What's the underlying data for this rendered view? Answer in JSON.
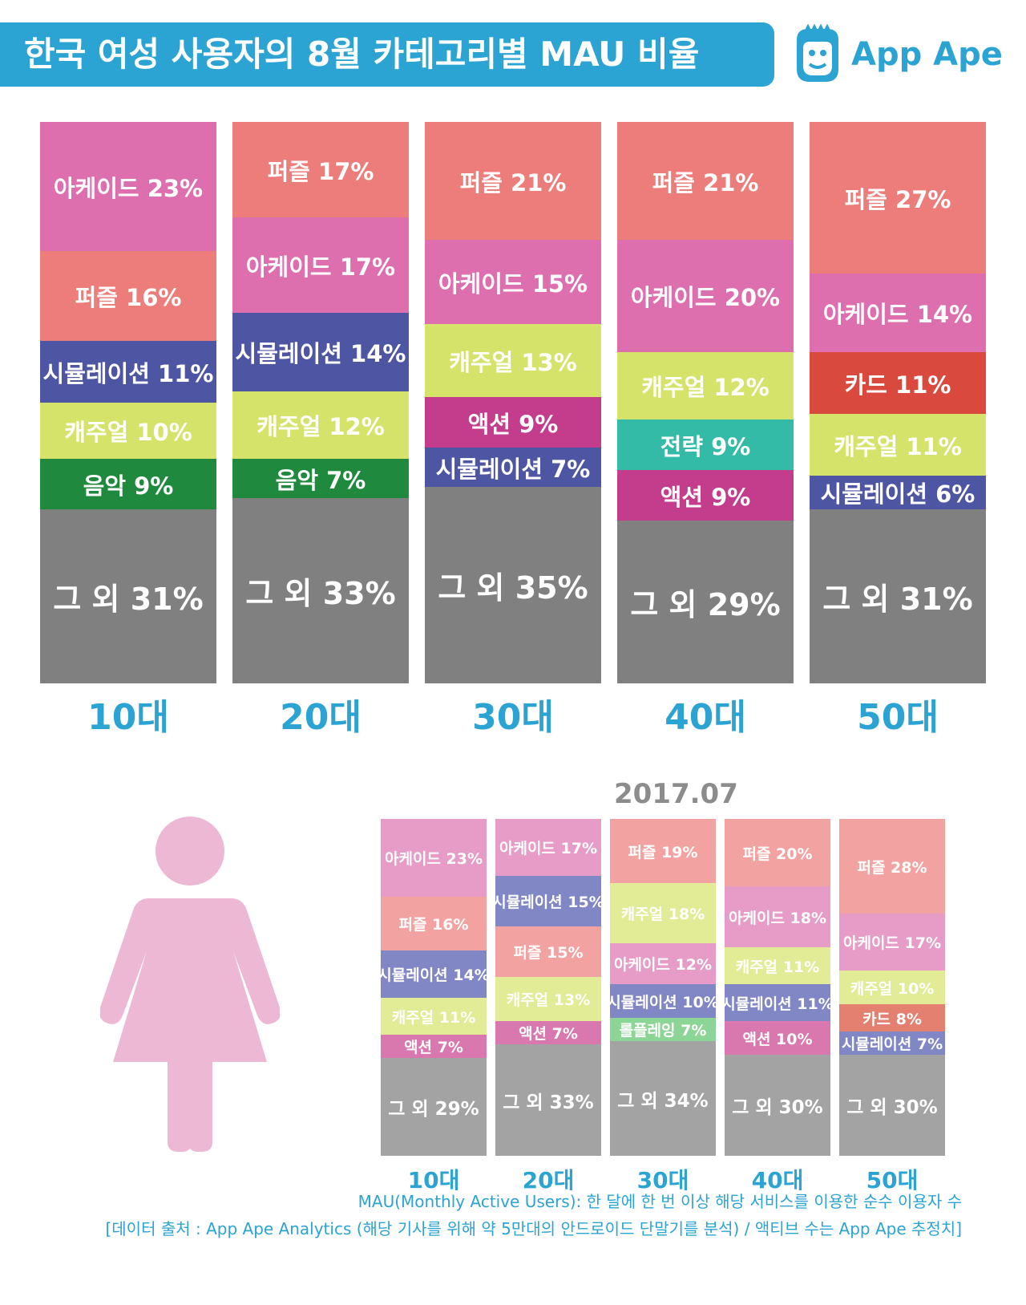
{
  "title": "한국 여성 사용자의 8월 카테고리별 MAU 비율",
  "logo_text": "App Ape",
  "colors": {
    "accent": "#2ba3d3",
    "categories": {
      "아케이드": "#de6fae",
      "퍼즐": "#ec7d7a",
      "시뮬레이션": "#4e56a4",
      "캐주얼": "#d6e36a",
      "음악": "#1f8a3e",
      "액션": "#c33d8c",
      "전략": "#34bba7",
      "카드": "#d9493e",
      "롤플레잉": "#5cc46e",
      "그 외": "#808080"
    },
    "categories_light": {
      "아케이드": "#e79bc7",
      "퍼즐": "#f2a3a1",
      "시뮬레이션": "#8187c4",
      "캐주얼": "#e2eb96",
      "음악": "#6bb37e",
      "액션": "#d978ae",
      "전략": "#7ed3c5",
      "카드": "#e4806f",
      "롤플레잉": "#8cd596",
      "그 외": "#a3a3a3"
    }
  },
  "chart_data": [
    {
      "type": "bar",
      "stacked": true,
      "categories": [
        "10대",
        "20대",
        "30대",
        "40대",
        "50대"
      ],
      "bars": [
        {
          "label": "10대",
          "segments": [
            {
              "name": "아케이드",
              "value": 23,
              "text": "아케이드 23%"
            },
            {
              "name": "퍼즐",
              "value": 16,
              "text": "퍼즐 16%"
            },
            {
              "name": "시뮬레이션",
              "value": 11,
              "text": "시뮬레이션 11%"
            },
            {
              "name": "캐주얼",
              "value": 10,
              "text": "캐주얼 10%"
            },
            {
              "name": "음악",
              "value": 9,
              "text": "음악 9%"
            },
            {
              "name": "그 외",
              "value": 31,
              "text": "그 외 31%"
            }
          ]
        },
        {
          "label": "20대",
          "segments": [
            {
              "name": "퍼즐",
              "value": 17,
              "text": "퍼즐 17%"
            },
            {
              "name": "아케이드",
              "value": 17,
              "text": "아케이드 17%"
            },
            {
              "name": "시뮬레이션",
              "value": 14,
              "text": "시뮬레이션 14%"
            },
            {
              "name": "캐주얼",
              "value": 12,
              "text": "캐주얼 12%"
            },
            {
              "name": "음악",
              "value": 7,
              "text": "음악 7%"
            },
            {
              "name": "그 외",
              "value": 33,
              "text": "그 외 33%"
            }
          ]
        },
        {
          "label": "30대",
          "segments": [
            {
              "name": "퍼즐",
              "value": 21,
              "text": "퍼즐 21%"
            },
            {
              "name": "아케이드",
              "value": 15,
              "text": "아케이드 15%"
            },
            {
              "name": "캐주얼",
              "value": 13,
              "text": "캐주얼 13%"
            },
            {
              "name": "액션",
              "value": 9,
              "text": "액션 9%"
            },
            {
              "name": "시뮬레이션",
              "value": 7,
              "text": "시뮬레이션 7%"
            },
            {
              "name": "그 외",
              "value": 35,
              "text": "그 외 35%"
            }
          ]
        },
        {
          "label": "40대",
          "segments": [
            {
              "name": "퍼즐",
              "value": 21,
              "text": "퍼즐 21%"
            },
            {
              "name": "아케이드",
              "value": 20,
              "text": "아케이드 20%"
            },
            {
              "name": "캐주얼",
              "value": 12,
              "text": "캐주얼 12%"
            },
            {
              "name": "전략",
              "value": 9,
              "text": "전략 9%"
            },
            {
              "name": "액션",
              "value": 9,
              "text": "액션 9%"
            },
            {
              "name": "그 외",
              "value": 29,
              "text": "그 외 29%"
            }
          ]
        },
        {
          "label": "50대",
          "segments": [
            {
              "name": "퍼즐",
              "value": 27,
              "text": "퍼즐 27%"
            },
            {
              "name": "아케이드",
              "value": 14,
              "text": "아케이드 14%"
            },
            {
              "name": "카드",
              "value": 11,
              "text": "카드 11%"
            },
            {
              "name": "캐주얼",
              "value": 11,
              "text": "캐주얼 11%"
            },
            {
              "name": "시뮬레이션",
              "value": 6,
              "text": "시뮬레이션 6%"
            },
            {
              "name": "그 외",
              "value": 31,
              "text": "그 외 31%"
            }
          ]
        }
      ]
    },
    {
      "type": "bar",
      "stacked": true,
      "title": "2017.07",
      "categories": [
        "10대",
        "20대",
        "30대",
        "40대",
        "50대"
      ],
      "bars": [
        {
          "label": "10대",
          "segments": [
            {
              "name": "아케이드",
              "value": 23,
              "text": "아케이드 23%"
            },
            {
              "name": "퍼즐",
              "value": 16,
              "text": "퍼즐 16%"
            },
            {
              "name": "시뮬레이션",
              "value": 14,
              "text": "시뮬레이션 14%"
            },
            {
              "name": "캐주얼",
              "value": 11,
              "text": "캐주얼 11%"
            },
            {
              "name": "액션",
              "value": 7,
              "text": "액션 7%"
            },
            {
              "name": "그 외",
              "value": 29,
              "text": "그 외 29%"
            }
          ]
        },
        {
          "label": "20대",
          "segments": [
            {
              "name": "아케이드",
              "value": 17,
              "text": "아케이드 17%"
            },
            {
              "name": "시뮬레이션",
              "value": 15,
              "text": "시뮬레이션 15%"
            },
            {
              "name": "퍼즐",
              "value": 15,
              "text": "퍼즐 15%"
            },
            {
              "name": "캐주얼",
              "value": 13,
              "text": "캐주얼 13%"
            },
            {
              "name": "액션",
              "value": 7,
              "text": "액션 7%"
            },
            {
              "name": "그 외",
              "value": 33,
              "text": "그 외 33%"
            }
          ]
        },
        {
          "label": "30대",
          "segments": [
            {
              "name": "퍼즐",
              "value": 19,
              "text": "퍼즐 19%"
            },
            {
              "name": "캐주얼",
              "value": 18,
              "text": "캐주얼 18%"
            },
            {
              "name": "아케이드",
              "value": 12,
              "text": "아케이드 12%"
            },
            {
              "name": "시뮬레이션",
              "value": 10,
              "text": "시뮬레이션 10%"
            },
            {
              "name": "롤플레잉",
              "value": 7,
              "text": "롤플레잉 7%"
            },
            {
              "name": "그 외",
              "value": 34,
              "text": "그 외 34%"
            }
          ]
        },
        {
          "label": "40대",
          "segments": [
            {
              "name": "퍼즐",
              "value": 20,
              "text": "퍼즐 20%"
            },
            {
              "name": "아케이드",
              "value": 18,
              "text": "아케이드 18%"
            },
            {
              "name": "캐주얼",
              "value": 11,
              "text": "캐주얼 11%"
            },
            {
              "name": "시뮬레이션",
              "value": 11,
              "text": "시뮬레이션 11%"
            },
            {
              "name": "액션",
              "value": 10,
              "text": "액션 10%"
            },
            {
              "name": "그 외",
              "value": 30,
              "text": "그 외 30%"
            }
          ]
        },
        {
          "label": "50대",
          "segments": [
            {
              "name": "퍼즐",
              "value": 28,
              "text": "퍼즐 28%"
            },
            {
              "name": "아케이드",
              "value": 17,
              "text": "아케이드 17%"
            },
            {
              "name": "캐주얼",
              "value": 10,
              "text": "캐주얼 10%"
            },
            {
              "name": "카드",
              "value": 8,
              "text": "카드 8%"
            },
            {
              "name": "시뮬레이션",
              "value": 7,
              "text": "시뮬레이션 7%"
            },
            {
              "name": "그 외",
              "value": 30,
              "text": "그 외 30%"
            }
          ]
        }
      ]
    }
  ],
  "footnote": {
    "line1": "MAU(Monthly Active Users): 한 달에 한 번 이상 해당 서비스를 이용한 순수 이용자 수",
    "line2": "[데이터 출처 : App Ape Analytics (해당 기사를 위해 약 5만대의 안드로이드 단말기를 분석) / 액티브 수는 App Ape 추정치]"
  }
}
